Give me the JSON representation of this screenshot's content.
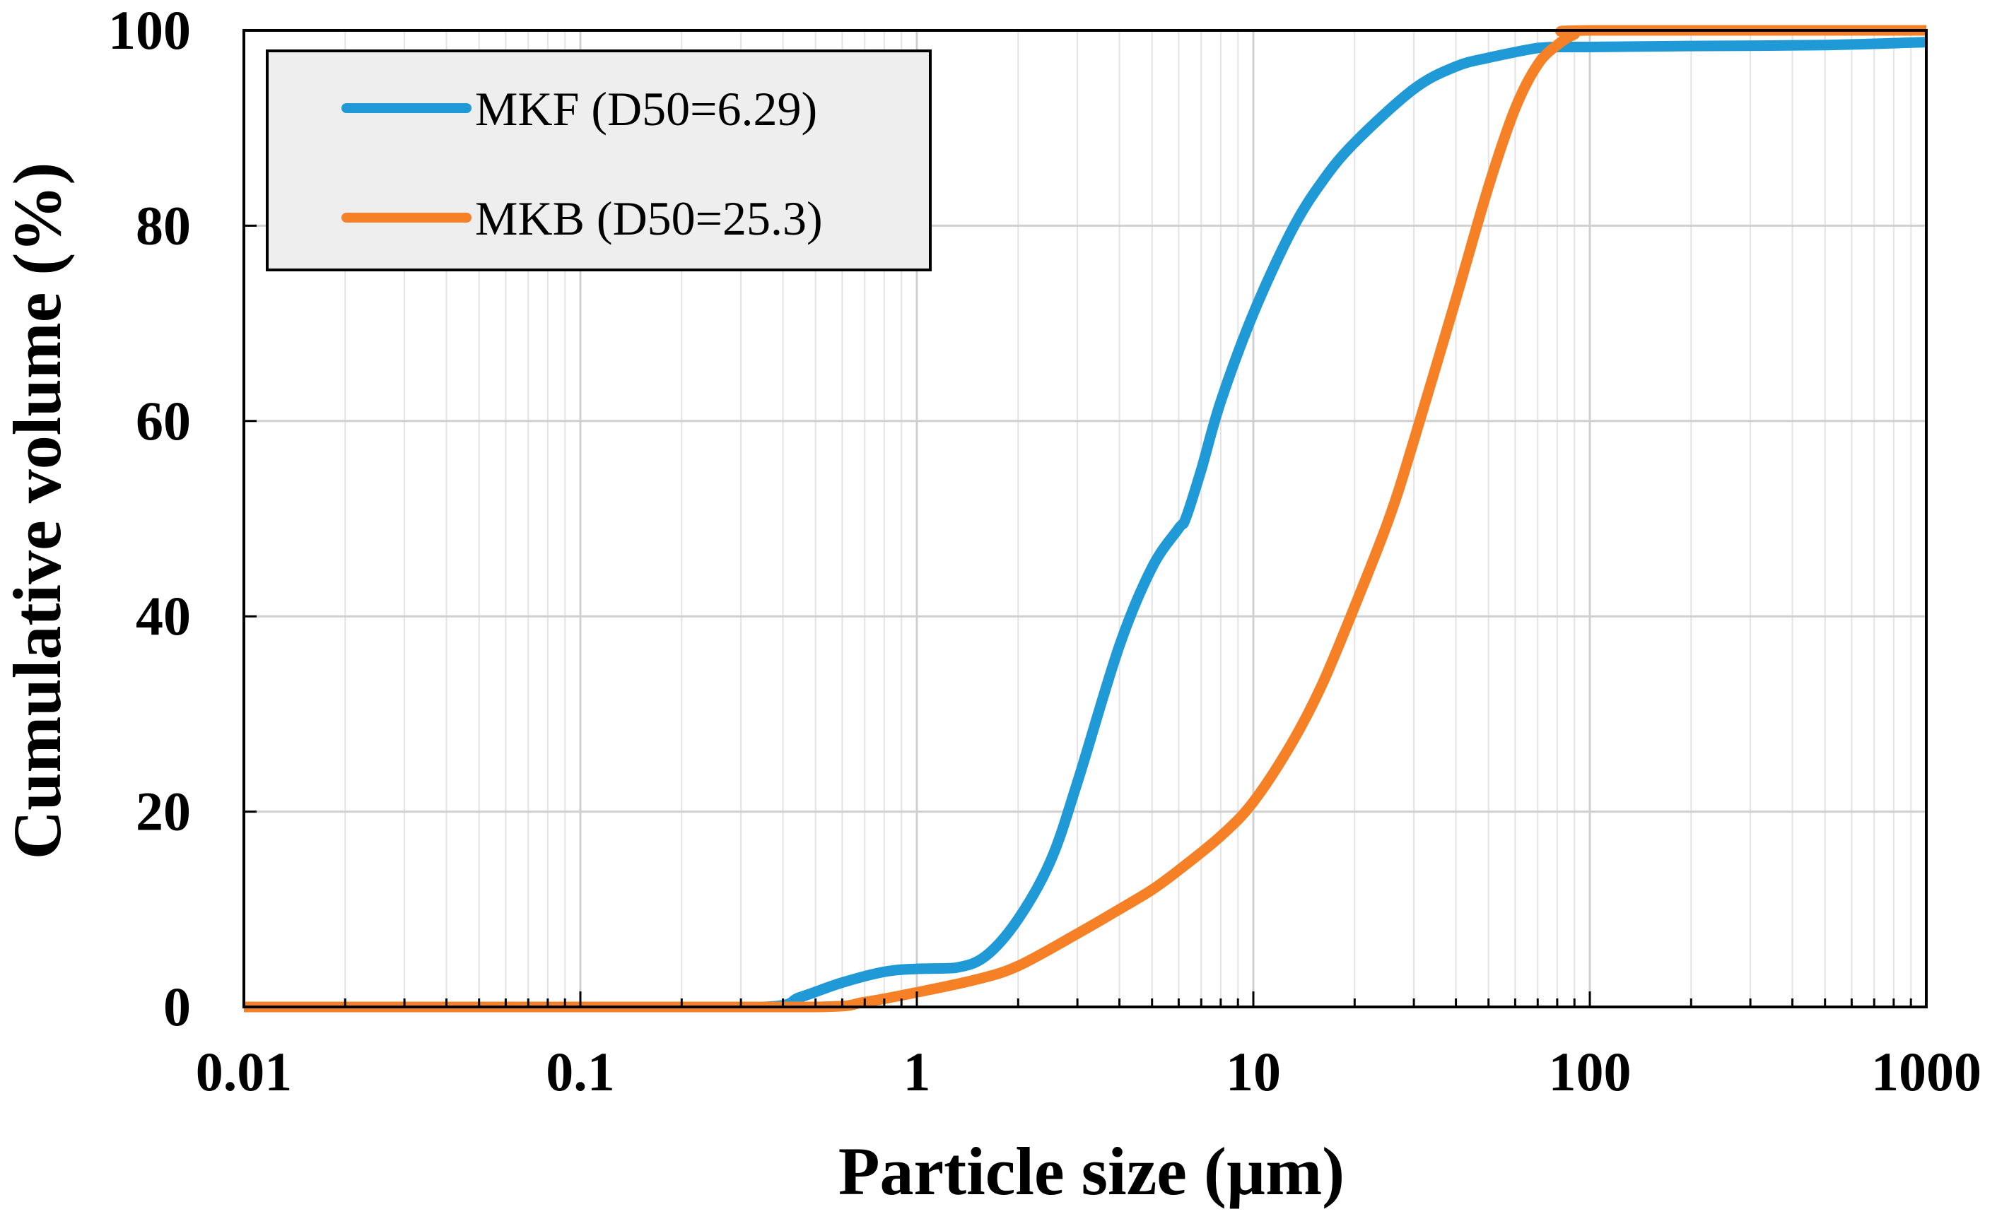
{
  "chart_data": {
    "type": "line",
    "title": "",
    "xlabel": "Particle size (µm)",
    "ylabel": "Cumulative volume (%)",
    "xscale": "log",
    "xlim": [
      0.01,
      1000
    ],
    "ylim": [
      0,
      100
    ],
    "x_ticks": [
      0.01,
      0.1,
      1,
      10,
      100,
      1000
    ],
    "x_tick_labels": [
      "0.01",
      "0.1",
      "1",
      "10",
      "100",
      "1000"
    ],
    "y_ticks": [
      0,
      20,
      40,
      60,
      80,
      100
    ],
    "y_tick_labels": [
      "0",
      "20",
      "40",
      "60",
      "80",
      "100"
    ],
    "grid": true,
    "legend_position": "top-left",
    "series": [
      {
        "name": "MKF (D50=6.29)",
        "color": "#1f9ad6",
        "x": [
          0.01,
          0.1,
          0.35,
          0.45,
          0.6,
          0.8,
          1.0,
          1.3,
          1.6,
          2.0,
          2.5,
          3.0,
          4.0,
          5.0,
          6.0,
          6.29,
          7.0,
          8.0,
          10.0,
          13.0,
          16.0,
          20.0,
          30.0,
          40.0,
          50.0,
          70.0,
          80.0,
          100.0,
          200.0,
          500.0,
          1000.0
        ],
        "values": [
          0,
          0,
          0,
          1,
          2.5,
          3.6,
          3.9,
          4.0,
          5.2,
          9.0,
          15.0,
          23.0,
          37.0,
          45.0,
          49.0,
          50.0,
          55.0,
          62.0,
          71.0,
          79.5,
          84.5,
          88.5,
          94.0,
          96.3,
          97.2,
          98.2,
          98.3,
          98.3,
          98.4,
          98.5,
          98.8
        ]
      },
      {
        "name": "MKB (D50=25.3)",
        "color": "#f58025",
        "x": [
          0.01,
          0.1,
          0.5,
          0.7,
          1.0,
          1.5,
          2.0,
          3.0,
          4.0,
          5.0,
          6.0,
          8.0,
          10.0,
          13.0,
          16.0,
          20.0,
          25.3,
          30.0,
          40.0,
          50.0,
          60.0,
          70.0,
          80.0,
          90.0,
          100.0,
          1000.0
        ],
        "values": [
          0,
          0,
          0,
          0.5,
          1.5,
          2.8,
          4.2,
          7.5,
          10.0,
          12.0,
          14.0,
          17.5,
          21.0,
          27.0,
          33.0,
          41.0,
          50.0,
          58.0,
          72.5,
          84.0,
          92.0,
          96.5,
          98.5,
          99.6,
          100.0,
          100.0
        ]
      }
    ]
  }
}
